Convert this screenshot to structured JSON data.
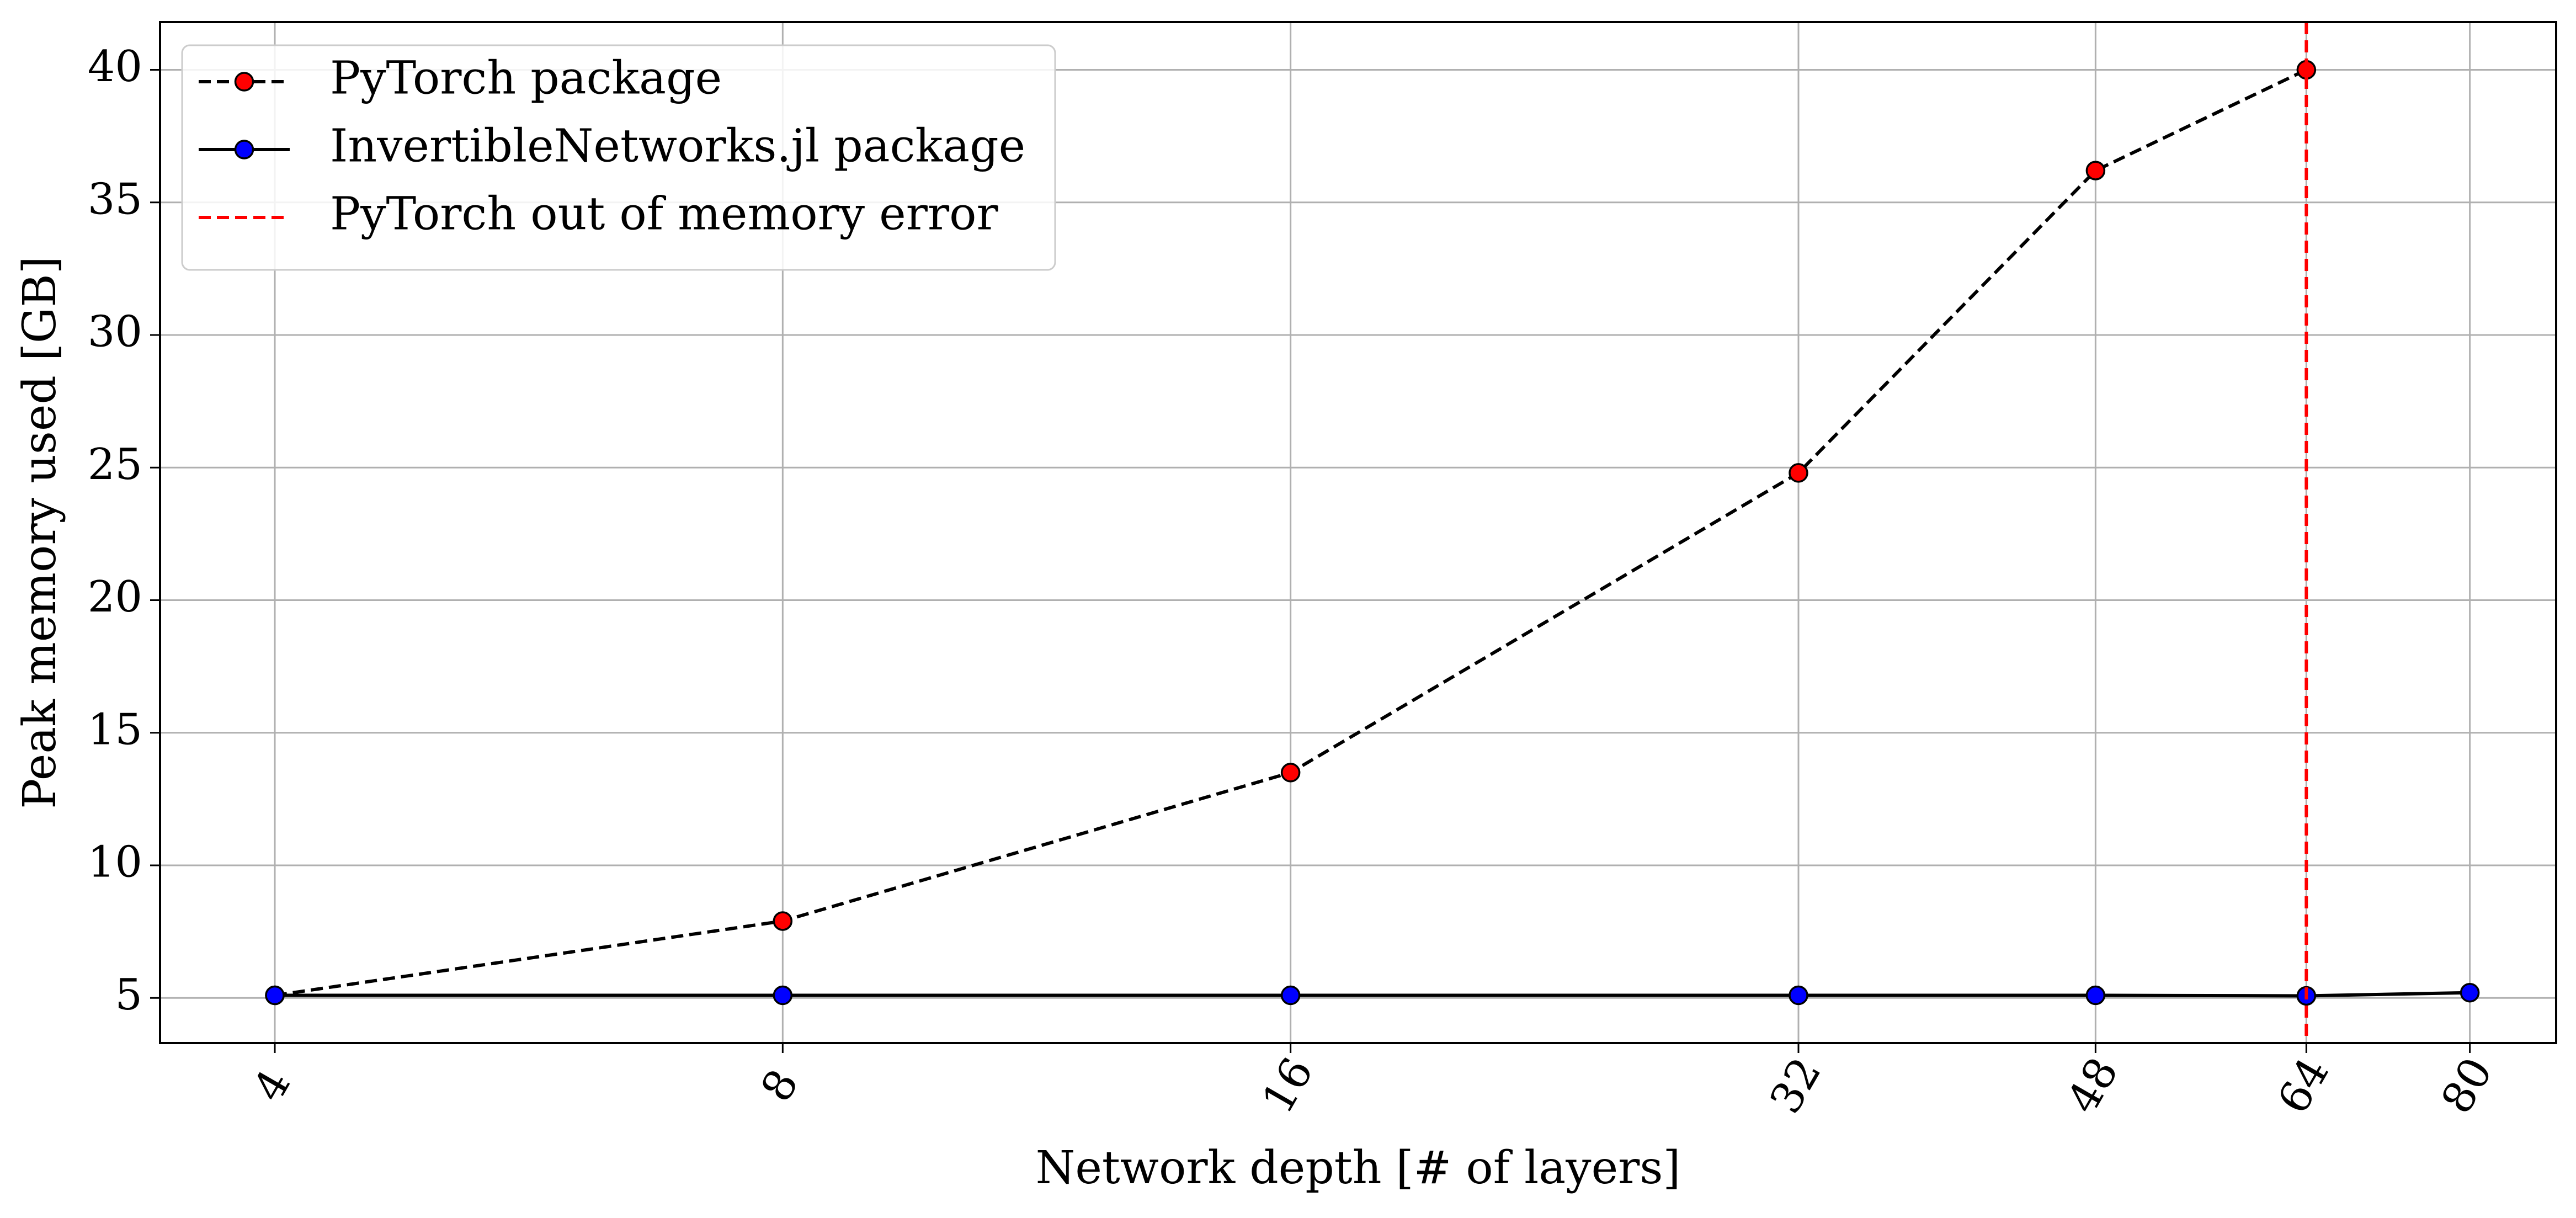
{
  "chart_data": {
    "type": "line",
    "title": "",
    "xlabel": "Network depth [# of layers]",
    "ylabel": "Peak memory used [GB]",
    "x_scale": "log2",
    "xticks": [
      4,
      8,
      16,
      32,
      48,
      64,
      80
    ],
    "xlim": [
      3.42,
      90.0
    ],
    "yticks": [
      5,
      10,
      15,
      20,
      25,
      30,
      35,
      40
    ],
    "ylim": [
      3.3,
      41.8
    ],
    "grid": true,
    "legend_position": "top-left",
    "series": [
      {
        "name": "PyTorch package",
        "line_style": "dashed",
        "line_color": "#000000",
        "marker_color": "#ff0000",
        "x": [
          4,
          8,
          16,
          32,
          48,
          64
        ],
        "y": [
          5.1,
          7.9,
          13.5,
          24.8,
          36.2,
          40.0
        ]
      },
      {
        "name": "InvertibleNetworks.jl package",
        "line_style": "solid",
        "line_color": "#000000",
        "marker_color": "#0000ff",
        "x": [
          4,
          8,
          16,
          32,
          48,
          64,
          80
        ],
        "y": [
          5.1,
          5.1,
          5.1,
          5.1,
          5.1,
          5.08,
          5.2
        ]
      }
    ],
    "vlines": [
      {
        "name": "PyTorch out of memory error",
        "x": 64,
        "line_style": "dashed",
        "color": "#ff0000"
      }
    ]
  }
}
